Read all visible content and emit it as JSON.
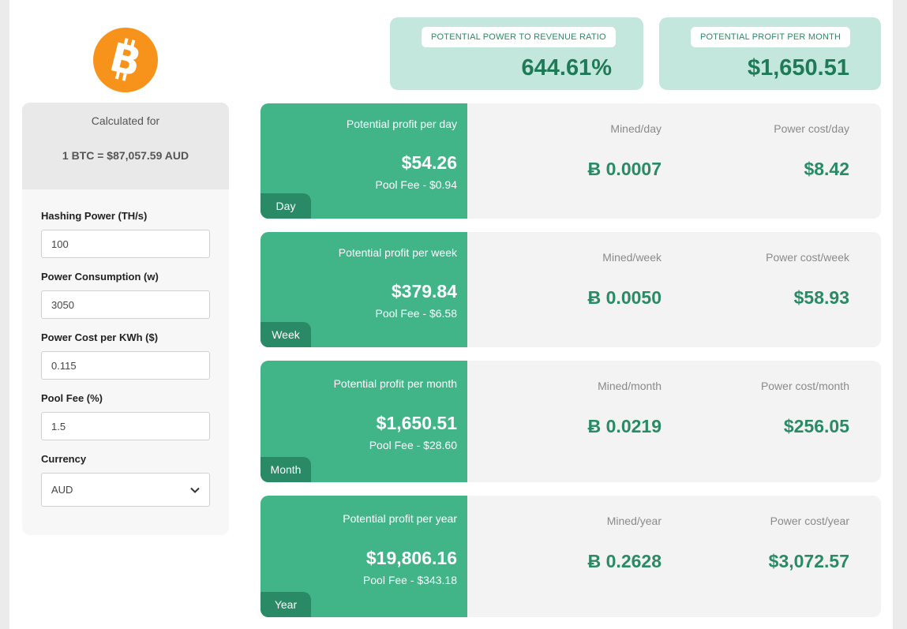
{
  "logo": {
    "icon": "bitcoin-icon",
    "color": "#f7931a"
  },
  "calc": {
    "heading": "Calculated for",
    "rate": "1 BTC = $87,057.59 AUD",
    "fields": {
      "hashing_label": "Hashing Power (TH/s)",
      "hashing_value": "100",
      "power_label": "Power Consumption (w)",
      "power_value": "3050",
      "cost_label": "Power Cost per KWh ($)",
      "cost_value": "0.115",
      "fee_label": "Pool Fee (%)",
      "fee_value": "1.5",
      "currency_label": "Currency",
      "currency_value": "AUD"
    }
  },
  "metrics": {
    "ratio_label": "POTENTIAL POWER TO REVENUE RATIO",
    "ratio_value": "644.61%",
    "profit_label": "POTENTIAL PROFIT PER MONTH",
    "profit_value": "$1,650.51"
  },
  "periods": {
    "day": {
      "tag": "Day",
      "title": "Potential profit per day",
      "amount": "$54.26",
      "fee": "Pool Fee - $0.94",
      "mined_label": "Mined/day",
      "mined_value": "Ƀ 0.0007",
      "cost_label": "Power cost/day",
      "cost_value": "$8.42"
    },
    "week": {
      "tag": "Week",
      "title": "Potential profit per week",
      "amount": "$379.84",
      "fee": "Pool Fee - $6.58",
      "mined_label": "Mined/week",
      "mined_value": "Ƀ 0.0050",
      "cost_label": "Power cost/week",
      "cost_value": "$58.93"
    },
    "month": {
      "tag": "Month",
      "title": "Potential profit per month",
      "amount": "$1,650.51",
      "fee": "Pool Fee - $28.60",
      "mined_label": "Mined/month",
      "mined_value": "Ƀ 0.0219",
      "cost_label": "Power cost/month",
      "cost_value": "$256.05"
    },
    "year": {
      "tag": "Year",
      "title": "Potential profit per year",
      "amount": "$19,806.16",
      "fee": "Pool Fee - $343.18",
      "mined_label": "Mined/year",
      "mined_value": "Ƀ 0.2628",
      "cost_label": "Power cost/year",
      "cost_value": "$3,072.57"
    }
  },
  "colors": {
    "accent_green": "#41b488",
    "dark_green": "#2a8a66",
    "metric_bg": "#c3e7dc",
    "bitcoin_orange": "#f7931a"
  }
}
